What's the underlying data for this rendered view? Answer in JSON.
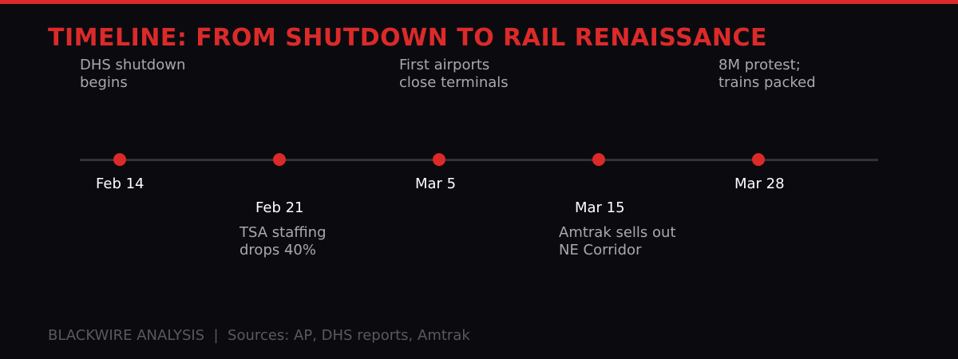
{
  "title": "TIMELINE: FROM SHUTDOWN TO RAIL RENAISSANCE",
  "colors": {
    "accent": "#dc2a2a",
    "background": "#0b0b0f",
    "axis": "#333336",
    "date": "#ffffff",
    "description": "#a9a9ad",
    "footer": "#5a5a5e"
  },
  "events": [
    {
      "date": "Feb 14",
      "line1": "DHS shutdown",
      "line2": "begins",
      "label_position": "above"
    },
    {
      "date": "Feb 21",
      "line1": "TSA staffing",
      "line2": "drops 40%",
      "label_position": "below"
    },
    {
      "date": "Mar 5",
      "line1": "First airports",
      "line2": "close terminals",
      "label_position": "above"
    },
    {
      "date": "Mar 15",
      "line1": "Amtrak sells out",
      "line2": "NE Corridor",
      "label_position": "below"
    },
    {
      "date": "Mar 28",
      "line1": "8M protest;",
      "line2": "trains packed",
      "label_position": "above"
    }
  ],
  "footer": "BLACKWIRE ANALYSIS  |  Sources: AP, DHS reports, Amtrak"
}
